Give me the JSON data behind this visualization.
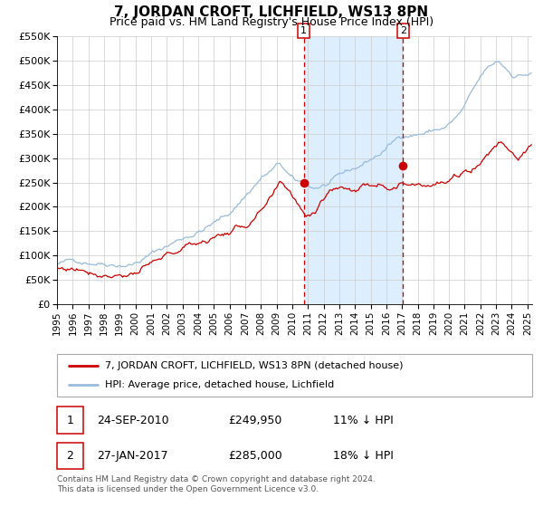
{
  "title": "7, JORDAN CROFT, LICHFIELD, WS13 8PN",
  "subtitle": "Price paid vs. HM Land Registry's House Price Index (HPI)",
  "ylim": [
    0,
    550000
  ],
  "xlim_start": 1995.0,
  "xlim_end": 2025.3,
  "yticks": [
    0,
    50000,
    100000,
    150000,
    200000,
    250000,
    300000,
    350000,
    400000,
    450000,
    500000,
    550000
  ],
  "ytick_labels": [
    "£0",
    "£50K",
    "£100K",
    "£150K",
    "£200K",
    "£250K",
    "£300K",
    "£350K",
    "£400K",
    "£450K",
    "£500K",
    "£550K"
  ],
  "xticks": [
    1995,
    1996,
    1997,
    1998,
    1999,
    2000,
    2001,
    2002,
    2003,
    2004,
    2005,
    2006,
    2007,
    2008,
    2009,
    2010,
    2011,
    2012,
    2013,
    2014,
    2015,
    2016,
    2017,
    2018,
    2019,
    2020,
    2021,
    2022,
    2023,
    2024,
    2025
  ],
  "line_red_color": "#cc0000",
  "line_blue_color": "#99bbdd",
  "marker_color": "#cc0000",
  "vline_color": "#cc0000",
  "shaded_color": "#ddeeff",
  "vline1_x": 2010.73,
  "vline2_x": 2017.07,
  "marker1_x": 2010.73,
  "marker1_y": 249950,
  "marker2_x": 2017.07,
  "marker2_y": 285000,
  "legend_label1": "7, JORDAN CROFT, LICHFIELD, WS13 8PN (detached house)",
  "legend_label2": "HPI: Average price, detached house, Lichfield",
  "note1_date": "24-SEP-2010",
  "note1_price": "£249,950",
  "note1_hpi": "11% ↓ HPI",
  "note2_date": "27-JAN-2017",
  "note2_price": "£285,000",
  "note2_hpi": "18% ↓ HPI",
  "footer": "Contains HM Land Registry data © Crown copyright and database right 2024.\nThis data is licensed under the Open Government Licence v3.0.",
  "grid_color": "#cccccc",
  "title_fontsize": 11,
  "subtitle_fontsize": 9,
  "tick_fontsize": 8,
  "legend_fontsize": 8,
  "note_fontsize": 9,
  "footer_fontsize": 6.5
}
